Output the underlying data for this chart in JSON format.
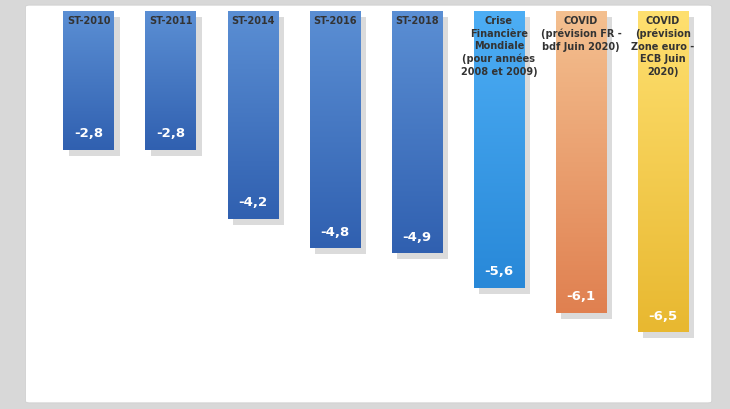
{
  "categories": [
    "ST-2010",
    "ST-2011",
    "ST-2014",
    "ST-2016",
    "ST-2018",
    "Crise\nFinancière\nMondiale\n(pour années\n2008 et 2009)",
    "COVID\n(prévision FR -\nbdf Juin 2020)",
    "COVID\n(prévision\nZone euro -\nECB Juin\n2020)"
  ],
  "values": [
    -2.8,
    -2.8,
    -4.2,
    -4.8,
    -4.9,
    -5.6,
    -6.1,
    -6.5
  ],
  "bar_colors_top": [
    "#5B8FD4",
    "#5B8FD4",
    "#5B8FD4",
    "#5B8FD4",
    "#5B8FD4",
    "#4DAEF5",
    "#F4C090",
    "#FFE070"
  ],
  "bar_colors_bot": [
    "#3060B0",
    "#3060B0",
    "#3060B0",
    "#3060B0",
    "#3060B0",
    "#2888D8",
    "#E08050",
    "#E8B830"
  ],
  "value_labels": [
    "-2,8",
    "-2,8",
    "-4,2",
    "-4,8",
    "-4,9",
    "-5,6",
    "-6,1",
    "-6,5"
  ],
  "cat_labels": [
    "ST-2010",
    "ST-2011",
    "ST-2014",
    "ST-2016",
    "ST-2018",
    "Crise\nFinancière\nMondiale\n(pour années\n2008 et 2009)",
    "COVID\n(prévision FR -\nbdf Juin 2020)",
    "COVID\n(prévision\nZone euro -\nECB Juin\n2020)"
  ],
  "ylim": [
    -7.8,
    0.0
  ],
  "bar_width": 0.62,
  "fig_bg": "#d8d8d8",
  "card_bg": "#ffffff",
  "shadow_color": "#b0b0b0"
}
